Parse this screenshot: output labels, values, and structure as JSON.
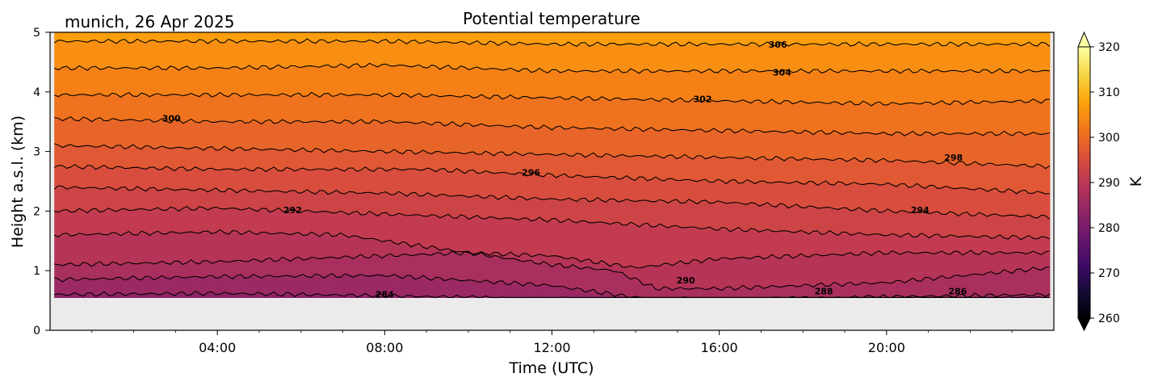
{
  "chart_data": {
    "type": "heatmap",
    "title": "Potential temperature",
    "location_date": "munich, 26 Apr 2025",
    "xlabel": "Time (UTC)",
    "ylabel": "Height a.s.l. (km)",
    "x_unit": "hours UTC",
    "xlim": [
      0,
      24
    ],
    "ylim": [
      0,
      5
    ],
    "x_ticks": [
      {
        "value": 4,
        "label": "04:00"
      },
      {
        "value": 8,
        "label": "08:00"
      },
      {
        "value": 12,
        "label": "12:00"
      },
      {
        "value": 16,
        "label": "16:00"
      },
      {
        "value": 20,
        "label": "20:00"
      }
    ],
    "y_ticks": [
      {
        "value": 0,
        "label": "0"
      },
      {
        "value": 1,
        "label": "1"
      },
      {
        "value": 2,
        "label": "2"
      },
      {
        "value": 3,
        "label": "3"
      },
      {
        "value": 4,
        "label": "4"
      },
      {
        "value": 5,
        "label": "5"
      }
    ],
    "data_x_range": [
      0.1,
      23.9
    ],
    "data_bottom_km": 0.55,
    "no_data_color": "#ebebeb",
    "colormap": "inferno",
    "colorbar": {
      "label": "K",
      "vmin": 260,
      "vmax": 320,
      "extend": "both",
      "ticks": [
        {
          "value": 260,
          "label": "260"
        },
        {
          "value": 270,
          "label": "270"
        },
        {
          "value": 280,
          "label": "280"
        },
        {
          "value": 290,
          "label": "290"
        },
        {
          "value": 300,
          "label": "300"
        },
        {
          "value": 310,
          "label": "310"
        },
        {
          "value": 320,
          "label": "320"
        }
      ]
    },
    "contour_levels": [
      284,
      286,
      288,
      290,
      292,
      294,
      296,
      298,
      300,
      302,
      304,
      306
    ],
    "contours": [
      {
        "level": 284,
        "points": [
          [
            0.1,
            0.6
          ],
          [
            4,
            0.62
          ],
          [
            8,
            0.58
          ],
          [
            12,
            0.52
          ],
          [
            16,
            0.5
          ],
          [
            20,
            0.52
          ],
          [
            23.9,
            0.53
          ]
        ]
      },
      {
        "level": 286,
        "points": [
          [
            0.1,
            0.85
          ],
          [
            4,
            0.9
          ],
          [
            8,
            0.92
          ],
          [
            12,
            0.75
          ],
          [
            14,
            0.55
          ],
          [
            16,
            0.5
          ],
          [
            19,
            0.55
          ],
          [
            23.9,
            0.6
          ]
        ]
      },
      {
        "level": 288,
        "points": [
          [
            0.1,
            1.1
          ],
          [
            4,
            1.15
          ],
          [
            8,
            1.25
          ],
          [
            10,
            1.3
          ],
          [
            12,
            1.1
          ],
          [
            13.5,
            1.0
          ],
          [
            14.5,
            0.7
          ],
          [
            16,
            0.7
          ],
          [
            20,
            0.8
          ],
          [
            23.9,
            1.05
          ]
        ]
      },
      {
        "level": 290,
        "points": [
          [
            0.1,
            1.6
          ],
          [
            4,
            1.65
          ],
          [
            7,
            1.6
          ],
          [
            10,
            1.3
          ],
          [
            12,
            1.25
          ],
          [
            14,
            1.05
          ],
          [
            16,
            1.2
          ],
          [
            20,
            1.3
          ],
          [
            23.9,
            1.3
          ]
        ]
      },
      {
        "level": 292,
        "points": [
          [
            0.1,
            2.0
          ],
          [
            4,
            2.05
          ],
          [
            8,
            1.95
          ],
          [
            12,
            1.85
          ],
          [
            16,
            1.7
          ],
          [
            20,
            1.6
          ],
          [
            23.9,
            1.55
          ]
        ]
      },
      {
        "level": 294,
        "points": [
          [
            0.1,
            2.4
          ],
          [
            4,
            2.35
          ],
          [
            8,
            2.3
          ],
          [
            12,
            2.2
          ],
          [
            16,
            2.15
          ],
          [
            20,
            2.0
          ],
          [
            23.9,
            1.9
          ]
        ]
      },
      {
        "level": 296,
        "points": [
          [
            0.1,
            2.75
          ],
          [
            4,
            2.7
          ],
          [
            9,
            2.7
          ],
          [
            12,
            2.6
          ],
          [
            16,
            2.5
          ],
          [
            20,
            2.45
          ],
          [
            23.9,
            2.3
          ]
        ]
      },
      {
        "level": 298,
        "points": [
          [
            0.1,
            3.1
          ],
          [
            4,
            3.05
          ],
          [
            8,
            3.0
          ],
          [
            12,
            2.95
          ],
          [
            16,
            2.9
          ],
          [
            20,
            2.85
          ],
          [
            23.9,
            2.75
          ]
        ]
      },
      {
        "level": 300,
        "points": [
          [
            0.1,
            3.55
          ],
          [
            4,
            3.5
          ],
          [
            8,
            3.5
          ],
          [
            12,
            3.4
          ],
          [
            16,
            3.35
          ],
          [
            20,
            3.3
          ],
          [
            23.9,
            3.3
          ]
        ]
      },
      {
        "level": 302,
        "points": [
          [
            0.1,
            3.95
          ],
          [
            4,
            3.95
          ],
          [
            8,
            3.95
          ],
          [
            12,
            3.9
          ],
          [
            16,
            3.85
          ],
          [
            20,
            3.8
          ],
          [
            23.9,
            3.85
          ]
        ]
      },
      {
        "level": 304,
        "points": [
          [
            0.1,
            4.4
          ],
          [
            4,
            4.4
          ],
          [
            8,
            4.45
          ],
          [
            12,
            4.35
          ],
          [
            16,
            4.35
          ],
          [
            20,
            4.35
          ],
          [
            23.9,
            4.35
          ]
        ]
      },
      {
        "level": 306,
        "points": [
          [
            0.1,
            4.85
          ],
          [
            4,
            4.85
          ],
          [
            8,
            4.85
          ],
          [
            12,
            4.8
          ],
          [
            16,
            4.8
          ],
          [
            20,
            4.8
          ],
          [
            23.9,
            4.8
          ]
        ]
      }
    ],
    "contour_labels": [
      {
        "text": "284",
        "x": 8.0,
        "y": 0.6
      },
      {
        "text": "286",
        "x": 21.7,
        "y": 0.66
      },
      {
        "text": "288",
        "x": 18.5,
        "y": 0.66
      },
      {
        "text": "290",
        "x": 15.2,
        "y": 0.84
      },
      {
        "text": "292",
        "x": 5.8,
        "y": 2.02
      },
      {
        "text": "294",
        "x": 20.8,
        "y": 2.02
      },
      {
        "text": "296",
        "x": 11.5,
        "y": 2.65
      },
      {
        "text": "298",
        "x": 21.6,
        "y": 2.9
      },
      {
        "text": "300",
        "x": 2.9,
        "y": 3.56
      },
      {
        "text": "302",
        "x": 15.6,
        "y": 3.88
      },
      {
        "text": "304",
        "x": 17.5,
        "y": 4.33
      },
      {
        "text": "306",
        "x": 17.4,
        "y": 4.8
      }
    ]
  }
}
